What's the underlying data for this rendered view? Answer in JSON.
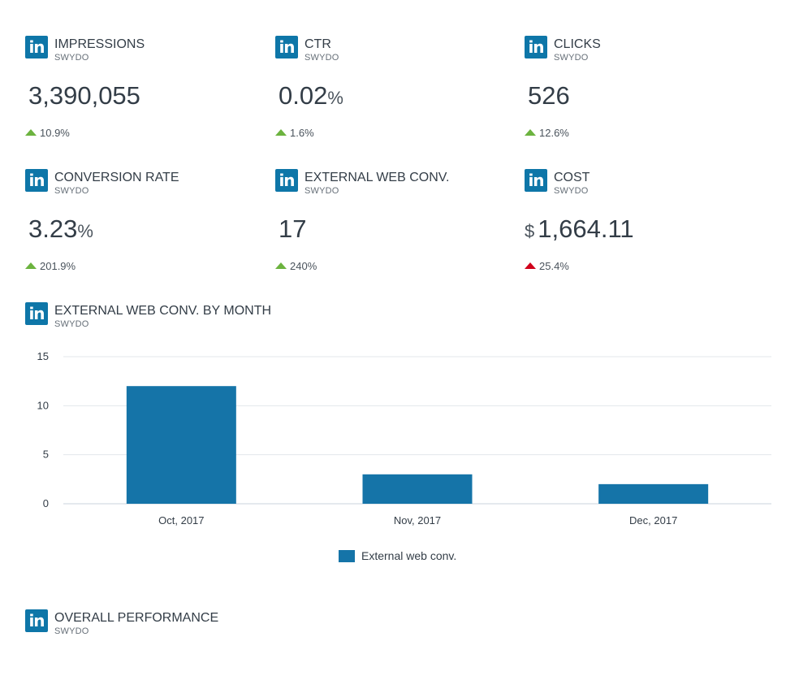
{
  "brand": {
    "logo_text": "in",
    "color": "#0e76a8"
  },
  "metrics": [
    {
      "title": "IMPRESSIONS",
      "source": "SWYDO",
      "value": "3,390,055",
      "unit": "",
      "prefix": "",
      "change": "10.9%",
      "direction": "up",
      "trend_color": "#6cb33f"
    },
    {
      "title": "CTR",
      "source": "SWYDO",
      "value": "0.02",
      "unit": "%",
      "prefix": "",
      "change": "1.6%",
      "direction": "up",
      "trend_color": "#6cb33f"
    },
    {
      "title": "CLICKS",
      "source": "SWYDO",
      "value": "526",
      "unit": "",
      "prefix": "",
      "change": "12.6%",
      "direction": "up",
      "trend_color": "#6cb33f"
    },
    {
      "title": "CONVERSION RATE",
      "source": "SWYDO",
      "value": "3.23",
      "unit": "%",
      "prefix": "",
      "change": "201.9%",
      "direction": "up",
      "trend_color": "#6cb33f"
    },
    {
      "title": "EXTERNAL WEB CONV.",
      "source": "SWYDO",
      "value": "17",
      "unit": "",
      "prefix": "",
      "change": "240%",
      "direction": "up",
      "trend_color": "#6cb33f"
    },
    {
      "title": "COST",
      "source": "SWYDO",
      "value": "1,664.11",
      "unit": "",
      "prefix": "$",
      "change": "25.4%",
      "direction": "up",
      "trend_color": "#d0021b"
    }
  ],
  "chart_section": {
    "title": "EXTERNAL WEB CONV. BY MONTH",
    "source": "SWYDO"
  },
  "chart_data": {
    "type": "bar",
    "title": "EXTERNAL WEB CONV. BY MONTH",
    "categories": [
      "Oct, 2017",
      "Nov, 2017",
      "Dec, 2017"
    ],
    "series": [
      {
        "name": "External web conv.",
        "values": [
          12,
          3,
          2
        ],
        "color": "#1574a8"
      }
    ],
    "yticks": [
      0,
      5,
      10,
      15
    ],
    "ylim": [
      0,
      15
    ],
    "grid": true,
    "legend": "bottom-center"
  },
  "overall_section": {
    "title": "OVERALL PERFORMANCE",
    "source": "SWYDO"
  }
}
